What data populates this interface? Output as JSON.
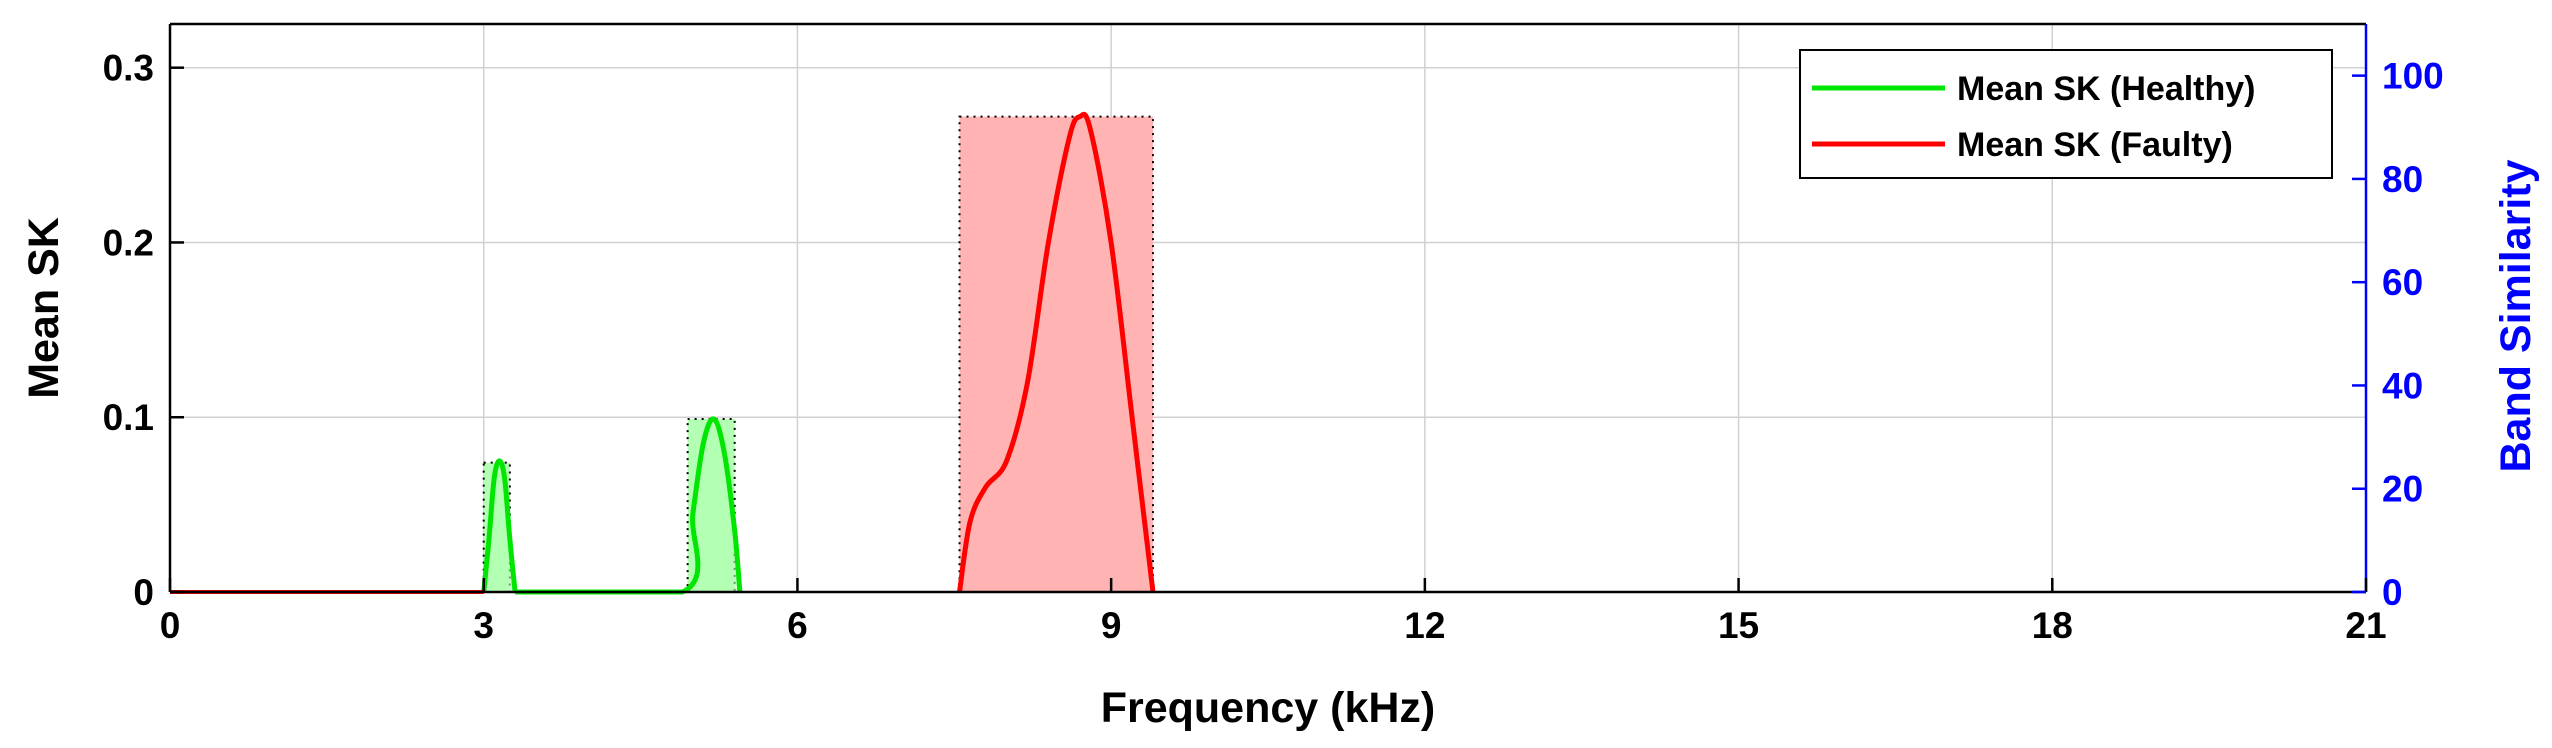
{
  "chart_data": {
    "type": "line",
    "xlabel": "Frequency (kHz)",
    "ylabel": "Mean SK",
    "ylabel_right": "Band Similarity",
    "xlim": [
      0,
      21
    ],
    "ylim": [
      0,
      0.325
    ],
    "ylim_right": [
      0,
      110
    ],
    "xticks": [
      0,
      3,
      6,
      9,
      12,
      15,
      18,
      21
    ],
    "xtick_labels": [
      "0",
      "3",
      "6",
      "9",
      "12",
      "15",
      "18",
      "21"
    ],
    "yticks": [
      0,
      0.1,
      0.2,
      0.3
    ],
    "ytick_labels": [
      "0",
      "0.1",
      "0.2",
      "0.3"
    ],
    "yticks_right": [
      0,
      20,
      40,
      60,
      80,
      100
    ],
    "ytick_labels_right": [
      "0",
      "20",
      "40",
      "60",
      "80",
      "100"
    ],
    "grid": true,
    "legend_position": "top-right",
    "colors": {
      "healthy": "#00e600",
      "faulty": "#ff0000",
      "right_axis": "#0000ff"
    },
    "series": [
      {
        "name": "Mean SK (Healthy)",
        "color": "#00e600",
        "x": [
          0,
          3.0,
          3.05,
          3.1,
          3.15,
          3.2,
          3.25,
          3.3,
          4.9,
          5.0,
          5.1,
          5.2,
          5.3,
          5.4,
          5.45
        ],
        "y": [
          0,
          0,
          0.03,
          0.065,
          0.075,
          0.065,
          0.03,
          0,
          0,
          0.045,
          0.085,
          0.099,
          0.08,
          0.035,
          0
        ]
      },
      {
        "name": "Mean SK (Faulty)",
        "color": "#ff0000",
        "x": [
          0,
          7.55,
          7.65,
          7.8,
          8.0,
          8.2,
          8.4,
          8.6,
          8.7,
          8.8,
          9.0,
          9.2,
          9.4
        ],
        "y": [
          0,
          0,
          0.04,
          0.06,
          0.075,
          0.12,
          0.2,
          0.26,
          0.272,
          0.265,
          0.2,
          0.1,
          0
        ]
      }
    ],
    "bands": [
      {
        "x0": 3.0,
        "x1": 3.25,
        "height": 0.074,
        "series": "healthy"
      },
      {
        "x0": 4.95,
        "x1": 5.4,
        "height": 0.099,
        "series": "healthy"
      },
      {
        "x0": 7.55,
        "x1": 9.4,
        "height": 0.272,
        "series": "faulty"
      }
    ]
  }
}
